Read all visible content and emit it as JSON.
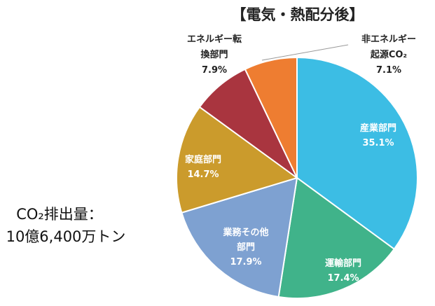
{
  "title": "【電気・熱配分後】",
  "total": {
    "line1": "CO₂排出量：",
    "line2": "10億6,400万トン"
  },
  "chart_data": {
    "type": "pie",
    "title": "【電気・熱配分後】",
    "start_angle_deg": 0,
    "direction": "clockwise",
    "slices": [
      {
        "label_lines": [
          "産業部門"
        ],
        "value_text": "35.1%",
        "value": 35.1,
        "color": "#3CBDE4"
      },
      {
        "label_lines": [
          "運輸部門"
        ],
        "value_text": "17.4%",
        "value": 17.4,
        "color": "#40B38A"
      },
      {
        "label_lines": [
          "業務その他",
          "部門"
        ],
        "value_text": "17.9%",
        "value": 17.9,
        "color": "#7EA1D1"
      },
      {
        "label_lines": [
          "家庭部門"
        ],
        "value_text": "14.7%",
        "value": 14.7,
        "color": "#CB9B2C"
      },
      {
        "label_lines": [
          "エネルギー転",
          "換部門"
        ],
        "value_text": "7.9%",
        "value": 7.9,
        "color": "#A9353F"
      },
      {
        "label_lines": [
          "非エネルギー",
          "起源CO₂"
        ],
        "value_text": "7.1%",
        "value": 7.1,
        "color": "#EE7D31"
      }
    ]
  }
}
